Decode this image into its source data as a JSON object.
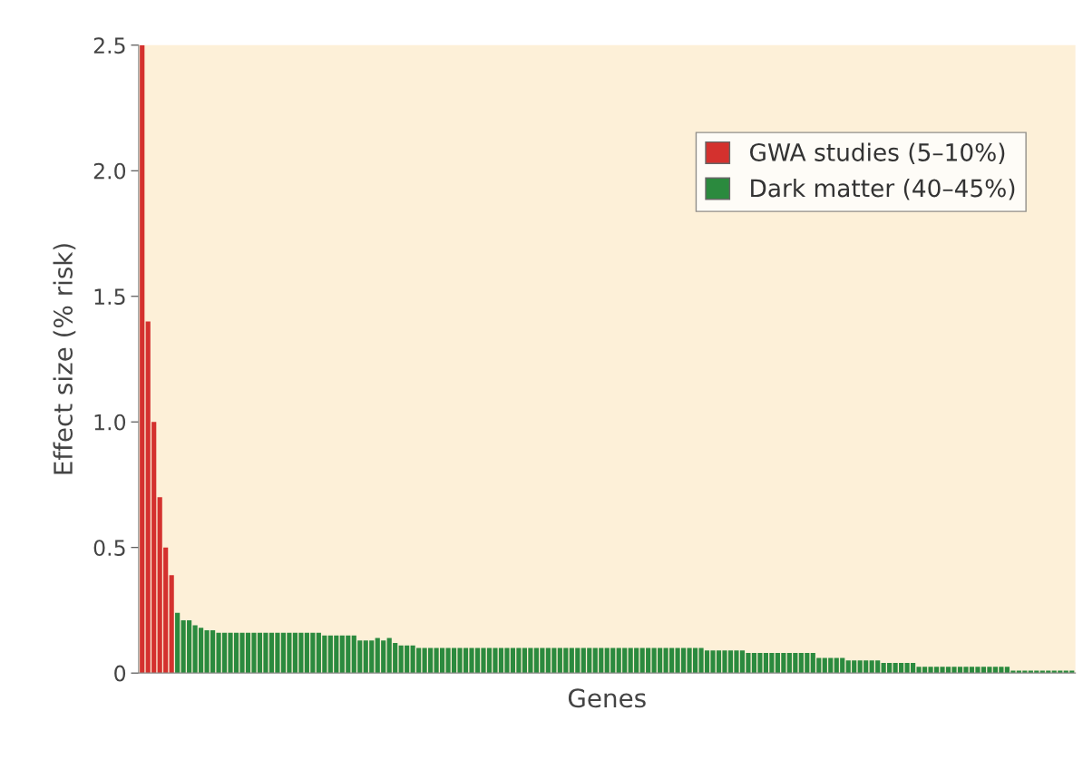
{
  "chart_data": {
    "type": "bar",
    "xlabel": "Genes",
    "ylabel": "Effect size (% risk)",
    "categories": [
      null,
      null,
      null,
      null,
      null,
      null,
      null,
      null,
      null,
      null,
      null,
      null,
      null,
      null,
      null,
      null,
      null,
      null,
      null,
      null,
      null,
      null,
      null,
      null,
      null,
      null,
      null,
      null,
      null,
      null,
      null,
      null,
      null,
      null,
      null,
      null,
      null,
      null,
      null,
      null,
      null,
      null,
      null,
      null,
      null,
      null,
      null,
      null,
      null,
      null,
      null,
      null,
      null,
      null,
      null,
      null,
      null,
      null,
      null,
      null,
      null,
      null,
      null,
      null,
      null,
      null,
      null,
      null,
      null,
      null,
      null,
      null,
      null,
      null,
      null,
      null,
      null,
      null,
      null,
      null,
      null,
      null,
      null,
      null,
      null,
      null,
      null,
      null,
      null,
      null,
      null,
      null,
      null,
      null,
      null,
      null,
      null,
      null,
      null,
      null,
      null,
      null,
      null,
      null,
      null,
      null,
      null,
      null,
      null,
      null,
      null,
      null,
      null,
      null,
      null,
      null,
      null,
      null,
      null,
      null,
      null,
      null,
      null,
      null,
      null,
      null,
      null,
      null,
      null,
      null,
      null,
      null,
      null,
      null,
      null,
      null,
      null,
      null,
      null,
      null,
      null,
      null,
      null,
      null,
      null,
      null,
      null,
      null,
      null,
      null,
      null,
      null,
      null,
      null,
      null,
      null,
      null,
      null,
      null
    ],
    "series": [
      {
        "name": "GWA studies (5–10%)",
        "color": "#d4312e",
        "values": [
          2.5,
          1.4,
          1.0,
          0.7,
          0.5,
          0.39,
          null,
          null,
          null,
          null,
          null,
          null,
          null,
          null,
          null,
          null,
          null,
          null,
          null,
          null,
          null,
          null,
          null,
          null,
          null,
          null,
          null,
          null,
          null,
          null,
          null,
          null,
          null,
          null,
          null,
          null,
          null,
          null,
          null,
          null,
          null,
          null,
          null,
          null,
          null,
          null,
          null,
          null,
          null,
          null,
          null,
          null,
          null,
          null,
          null,
          null,
          null,
          null,
          null,
          null,
          null,
          null,
          null,
          null,
          null,
          null,
          null,
          null,
          null,
          null,
          null,
          null,
          null,
          null,
          null,
          null,
          null,
          null,
          null,
          null,
          null,
          null,
          null,
          null,
          null,
          null,
          null,
          null,
          null,
          null,
          null,
          null,
          null,
          null,
          null,
          null,
          null,
          null,
          null,
          null,
          null,
          null,
          null,
          null,
          null,
          null,
          null,
          null,
          null,
          null,
          null,
          null,
          null,
          null,
          null,
          null,
          null,
          null,
          null,
          null,
          null,
          null,
          null,
          null,
          null,
          null,
          null,
          null,
          null,
          null,
          null,
          null,
          null,
          null,
          null,
          null,
          null,
          null,
          null,
          null,
          null,
          null,
          null,
          null,
          null,
          null,
          null,
          null,
          null,
          null,
          null,
          null,
          null,
          null,
          null,
          null,
          null,
          null,
          null
        ]
      },
      {
        "name": "Dark matter (40–45%)",
        "color": "#2b8a3e",
        "values": [
          null,
          null,
          null,
          null,
          null,
          null,
          0.24,
          0.21,
          0.21,
          0.19,
          0.18,
          0.17,
          0.17,
          0.16,
          0.16,
          0.16,
          0.16,
          0.16,
          0.16,
          0.16,
          0.16,
          0.16,
          0.16,
          0.16,
          0.16,
          0.16,
          0.16,
          0.16,
          0.16,
          0.16,
          0.16,
          0.15,
          0.15,
          0.15,
          0.15,
          0.15,
          0.15,
          0.13,
          0.13,
          0.13,
          0.14,
          0.13,
          0.14,
          0.12,
          0.11,
          0.11,
          0.11,
          0.1,
          0.1,
          0.1,
          0.1,
          0.1,
          0.1,
          0.1,
          0.1,
          0.1,
          0.1,
          0.1,
          0.1,
          0.1,
          0.1,
          0.1,
          0.1,
          0.1,
          0.1,
          0.1,
          0.1,
          0.1,
          0.1,
          0.1,
          0.1,
          0.1,
          0.1,
          0.1,
          0.1,
          0.1,
          0.1,
          0.1,
          0.1,
          0.1,
          0.1,
          0.1,
          0.1,
          0.1,
          0.1,
          0.1,
          0.1,
          0.1,
          0.1,
          0.1,
          0.1,
          0.1,
          0.1,
          0.1,
          0.1,
          0.1,
          0.09,
          0.09,
          0.09,
          0.09,
          0.09,
          0.09,
          0.09,
          0.08,
          0.08,
          0.08,
          0.08,
          0.08,
          0.08,
          0.08,
          0.08,
          0.08,
          0.08,
          0.08,
          0.08,
          0.06,
          0.06,
          0.06,
          0.06,
          0.06,
          0.05,
          0.05,
          0.05,
          0.05,
          0.05,
          0.05,
          0.04,
          0.04,
          0.04,
          0.04,
          0.04,
          0.04,
          0.025,
          0.025,
          0.025,
          0.025,
          0.025,
          0.025,
          0.025,
          0.025,
          0.025,
          0.025,
          0.025,
          0.025,
          0.025,
          0.025,
          0.025,
          0.025,
          0.01,
          0.01,
          0.01,
          0.01,
          0.01,
          0.01,
          0.01,
          0.01,
          0.01,
          0.01,
          0.01
        ]
      }
    ],
    "ylim": [
      0,
      2.5
    ],
    "yticks": [
      0,
      0.5,
      {
        "value": 1.0,
        "label": "1.0"
      },
      1.5,
      {
        "value": 2.0,
        "label": "2.0"
      },
      2.5
    ],
    "tick_labels": "y",
    "grid": false,
    "legend": "top right"
  }
}
